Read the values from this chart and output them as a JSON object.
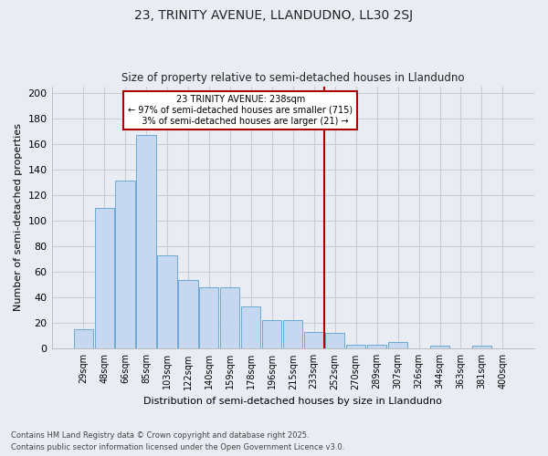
{
  "title1": "23, TRINITY AVENUE, LLANDUDNO, LL30 2SJ",
  "title2": "Size of property relative to semi-detached houses in Llandudno",
  "xlabel": "Distribution of semi-detached houses by size in Llandudno",
  "ylabel": "Number of semi-detached properties",
  "categories": [
    "29sqm",
    "48sqm",
    "66sqm",
    "85sqm",
    "103sqm",
    "122sqm",
    "140sqm",
    "159sqm",
    "178sqm",
    "196sqm",
    "215sqm",
    "233sqm",
    "252sqm",
    "270sqm",
    "289sqm",
    "307sqm",
    "326sqm",
    "344sqm",
    "363sqm",
    "381sqm",
    "400sqm"
  ],
  "values": [
    15,
    110,
    131,
    167,
    73,
    54,
    48,
    48,
    33,
    22,
    22,
    13,
    12,
    3,
    3,
    5,
    0,
    2,
    0,
    2,
    0
  ],
  "bar_color": "#c5d8ef",
  "bar_edge_color": "#6aaad4",
  "vline_label": "23 TRINITY AVENUE: 238sqm",
  "smaller_pct": "97%",
  "smaller_count": 715,
  "larger_pct": "3%",
  "larger_count": 21,
  "vline_color": "#aa0000",
  "annotation_box_color": "#aa0000",
  "background_color": "#eaecf4",
  "grid_color": "#c8cdd8",
  "footer1": "Contains HM Land Registry data © Crown copyright and database right 2025.",
  "footer2": "Contains public sector information licensed under the Open Government Licence v3.0.",
  "ylim": [
    0,
    205
  ],
  "yticks": [
    0,
    20,
    40,
    60,
    80,
    100,
    120,
    140,
    160,
    180,
    200
  ]
}
